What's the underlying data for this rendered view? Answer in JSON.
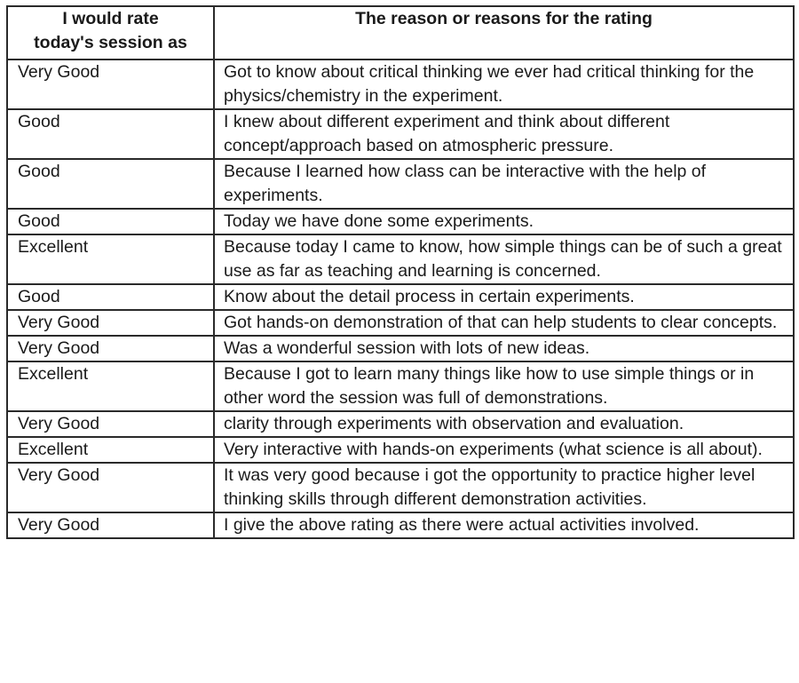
{
  "table": {
    "headers": [
      "I would rate today's session as",
      "The reason or reasons for the rating"
    ],
    "header_lines": {
      "rating": [
        "I would rate",
        "today's session as"
      ],
      "reason": [
        "The reason or reasons for the rating"
      ]
    },
    "rows": [
      {
        "rating": "Very Good",
        "reason": "Got to know about critical thinking we ever had critical thinking for the physics/chemistry in the experiment."
      },
      {
        "rating": "Good",
        "reason": "I knew about different experiment and think about different concept/approach based on atmospheric pressure."
      },
      {
        "rating": "Good",
        "reason": "Because I learned how class can be interactive with the help of experiments."
      },
      {
        "rating": "Good",
        "reason": "Today we have done some experiments."
      },
      {
        "rating": "Excellent",
        "reason": "Because today I came to know, how simple things can be of such a great use as far as teaching and learning is concerned."
      },
      {
        "rating": "Good",
        "reason": "Know about the detail process in certain experiments."
      },
      {
        "rating": "Very Good",
        "reason": "Got hands-on demonstration of that can help students to clear concepts."
      },
      {
        "rating": "Very Good",
        "reason": "Was a wonderful session with lots of new ideas."
      },
      {
        "rating": "Excellent",
        "reason": "Because I got to learn many things like how to use simple things or in other word the session was full of demonstrations."
      },
      {
        "rating": "Very Good",
        "reason": "clarity through experiments with observation and evaluation."
      },
      {
        "rating": "Excellent",
        "reason": "Very interactive with hands-on experiments (what science is all about)."
      },
      {
        "rating": "Very Good",
        "reason": "It was very good because i got the opportunity to practice higher level thinking skills through different demonstration activities."
      },
      {
        "rating": "Very Good",
        "reason": "I give the above rating as there were actual activities involved."
      }
    ]
  }
}
